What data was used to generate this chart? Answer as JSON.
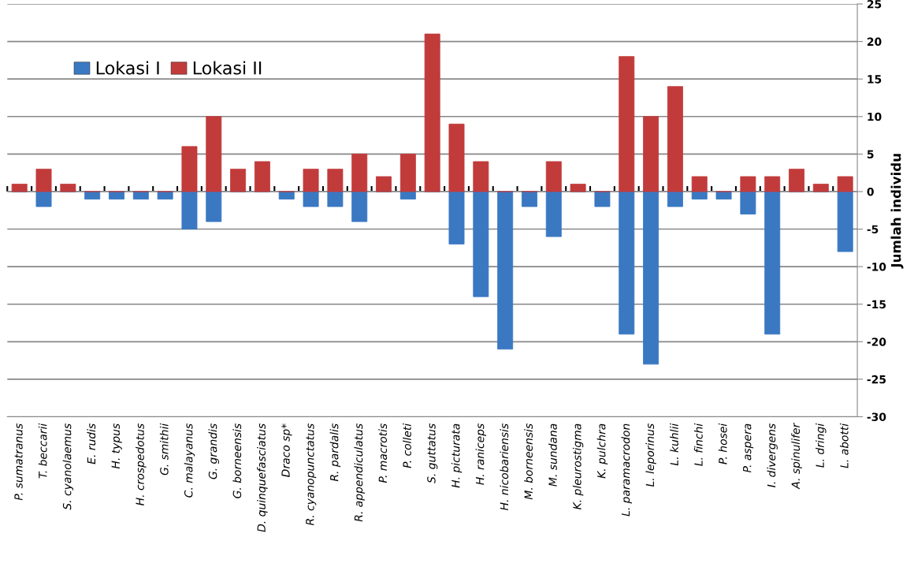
{
  "chart_data": {
    "type": "bar",
    "ylabel": "Jumlah individu",
    "categories": [
      "P. sumatranus",
      "T. beccarii",
      "S. cyanolaemus",
      "E. rudis",
      "H. typus",
      "H. crospedotus",
      "G. smithii",
      "C. malayanus",
      "G. grandis",
      "G. borneensis",
      "D. quinquefasciatus",
      "Draco sp*",
      "R. cyanopunctatus",
      "R. pardalis",
      "R. appendiculatus",
      "P. macrotis",
      "P. colleti",
      "S. guttatus",
      "H. picturata",
      "H. raniceps",
      "H. nicobariensis",
      "M. borneensis",
      "M. sundana",
      "K. pleurostigma",
      "K. pulchra",
      "L. paramacrodon",
      "L. leporinus",
      "L. kuhlii",
      "L. finchi",
      "P. hosei",
      "P. aspera",
      "I. divergens",
      "A. spinulifer",
      "L. dringi",
      "L. abotti"
    ],
    "series": [
      {
        "name": "Lokasi I",
        "color": "#3a78c2",
        "values": [
          0,
          -2,
          0,
          -1,
          -1,
          -1,
          -1,
          -5,
          -4,
          0,
          0,
          -1,
          -2,
          -2,
          -4,
          0,
          -1,
          0,
          -7,
          -14,
          -21,
          -2,
          -6,
          0,
          -2,
          -19,
          -23,
          -2,
          -1,
          -1,
          -3,
          -19,
          0,
          0,
          -8
        ]
      },
      {
        "name": "Lokasi II",
        "color": "#c23b3b",
        "values": [
          1,
          3,
          1,
          0,
          0,
          0,
          0,
          6,
          10,
          3,
          4,
          0,
          3,
          3,
          5,
          2,
          5,
          21,
          9,
          4,
          0,
          0,
          4,
          1,
          0,
          18,
          10,
          14,
          2,
          0,
          2,
          2,
          3,
          1,
          2
        ]
      }
    ],
    "ylim": [
      -30,
      25
    ],
    "yticks": [
      -30,
      -25,
      -20,
      -15,
      -10,
      -5,
      0,
      5,
      10,
      15,
      20,
      25
    ],
    "grid": "y",
    "legend": "top left"
  }
}
